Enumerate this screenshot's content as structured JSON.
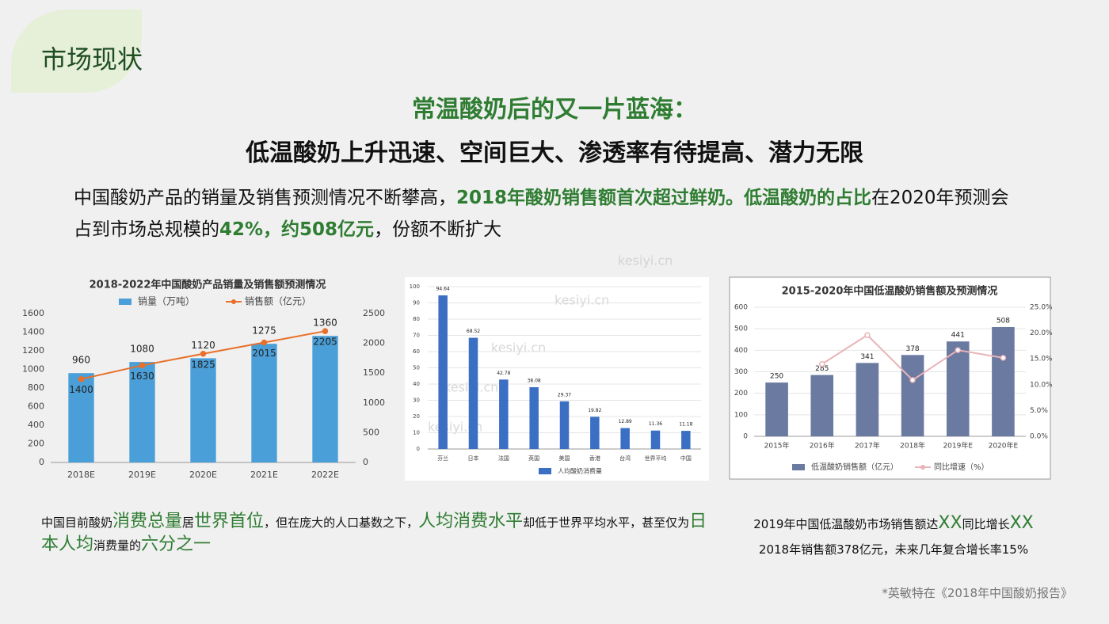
{
  "header": {
    "title": "市场现状"
  },
  "headline": [
    "常温酸奶后的又一片蓝海：",
    "低温酸奶上升迅速、空间巨大、渗透率有待提高、潜力无限"
  ],
  "intro": [
    {
      "text": "中国酸奶产品的销量及销售预测情况不断攀高，",
      "emphasis": false
    },
    {
      "text": "2018年酸奶销售额首次超过鲜奶。低温酸奶的占比",
      "emphasis": true
    },
    {
      "text": "在2020年预测会占到市场总规模的",
      "emphasis": false
    },
    {
      "text": "42%，约508亿元",
      "emphasis": true
    },
    {
      "text": "，份额不断扩大",
      "emphasis": false
    }
  ],
  "caption_left": [
    {
      "text": "中国目前酸奶",
      "highlight": false
    },
    {
      "text": "消费总量",
      "highlight": true
    },
    {
      "text": "居",
      "highlight": false
    },
    {
      "text": "世界首位",
      "highlight": true
    },
    {
      "text": "，但在庞大的人口基数之下，",
      "highlight": false
    },
    {
      "text": "人均消费水平",
      "highlight": true
    },
    {
      "text": "却低于世界平均水平，甚至仅为",
      "highlight": false
    },
    {
      "text": "日本人均",
      "highlight": true
    },
    {
      "text": "消费量的",
      "highlight": false
    },
    {
      "text": "六分之一",
      "highlight": true
    }
  ],
  "caption_right": [
    [
      {
        "text": "2019年中国低温酸奶市场销售额达",
        "highlight": false
      },
      {
        "text": "XX",
        "highlight": true
      },
      {
        "text": "同比增长",
        "highlight": false
      },
      {
        "text": "XX",
        "highlight": true
      }
    ],
    [
      {
        "text": "2018年销售额378亿元，未来几年复合增长率15%",
        "highlight": false
      }
    ]
  ],
  "footnote": "*英敏特在《2018年中国酸奶报告》",
  "watermark": "kesiyi.cn",
  "chart_data": [
    {
      "type": "combo",
      "title": "2018-2022年中国酸奶产品销量及销售额预测情况",
      "categories": [
        "2018E",
        "2019E",
        "2020E",
        "2021E",
        "2022E"
      ],
      "series": [
        {
          "name": "销量（万吨）",
          "type": "bar",
          "color": "#4a9fd8",
          "values": [
            960,
            1080,
            1120,
            1275,
            1360
          ],
          "show_values": true
        },
        {
          "name": "销售额（亿元）",
          "type": "line",
          "axis": "y2",
          "color": "#e8702a",
          "values": [
            1400,
            1630,
            1825,
            2015,
            2205
          ],
          "show_values": true
        }
      ],
      "ylim": [
        0,
        1600
      ],
      "yticks": [
        0,
        200,
        400,
        600,
        800,
        1000,
        1200,
        1400,
        1600
      ],
      "y2lim": [
        0,
        2500
      ],
      "y2ticks": [
        0,
        500,
        1000,
        1500,
        2000,
        2500
      ],
      "grid": false,
      "legend": "top"
    },
    {
      "type": "bar",
      "categories": [
        "芬兰",
        "日本",
        "法国",
        "英国",
        "美国",
        "香港",
        "台湾",
        "世界平均",
        "中国"
      ],
      "series": [
        {
          "name": "人均酸奶消费量",
          "type": "bar",
          "color": "#3a6fc4",
          "values": [
            94.64,
            68.52,
            42.78,
            38.08,
            29.37,
            19.82,
            12.89,
            11.36,
            11.18
          ],
          "show_values": true
        }
      ],
      "ylim": [
        0,
        100
      ],
      "yticks": [
        0,
        10,
        20,
        30,
        40,
        50,
        60,
        70,
        80,
        90,
        100
      ],
      "grid": true,
      "legend": "bottom"
    },
    {
      "type": "combo",
      "title": "2015-2020年中国低温酸奶销售额及预测情况",
      "categories": [
        "2015年",
        "2016年",
        "2017年",
        "2018年",
        "2019年E",
        "2020年E"
      ],
      "series": [
        {
          "name": "低温酸奶销售额（亿元）",
          "type": "bar",
          "color": "#6a7aa0",
          "values": [
            250,
            285,
            341,
            378,
            441,
            508
          ],
          "show_values": true
        },
        {
          "name": "同比增速（%）",
          "type": "line",
          "axis": "y2",
          "color": "#e8b4b8",
          "values": [
            null,
            14,
            19.6,
            10.9,
            16.7,
            15.2
          ],
          "show_values": false
        }
      ],
      "ylim": [
        0,
        600
      ],
      "yticks": [
        0,
        100,
        200,
        300,
        400,
        500,
        600
      ],
      "y2lim": [
        0,
        25
      ],
      "y2ticks": [
        {
          "value": 0,
          "label": "0.0%"
        },
        {
          "value": 5,
          "label": "5.0%"
        },
        {
          "value": 10,
          "label": "10.0%"
        },
        {
          "value": 15,
          "label": "15.0%"
        },
        {
          "value": 20,
          "label": "20.0%"
        },
        {
          "value": 25,
          "label": "25.0%"
        }
      ],
      "grid": true,
      "legend": "bottom"
    }
  ]
}
